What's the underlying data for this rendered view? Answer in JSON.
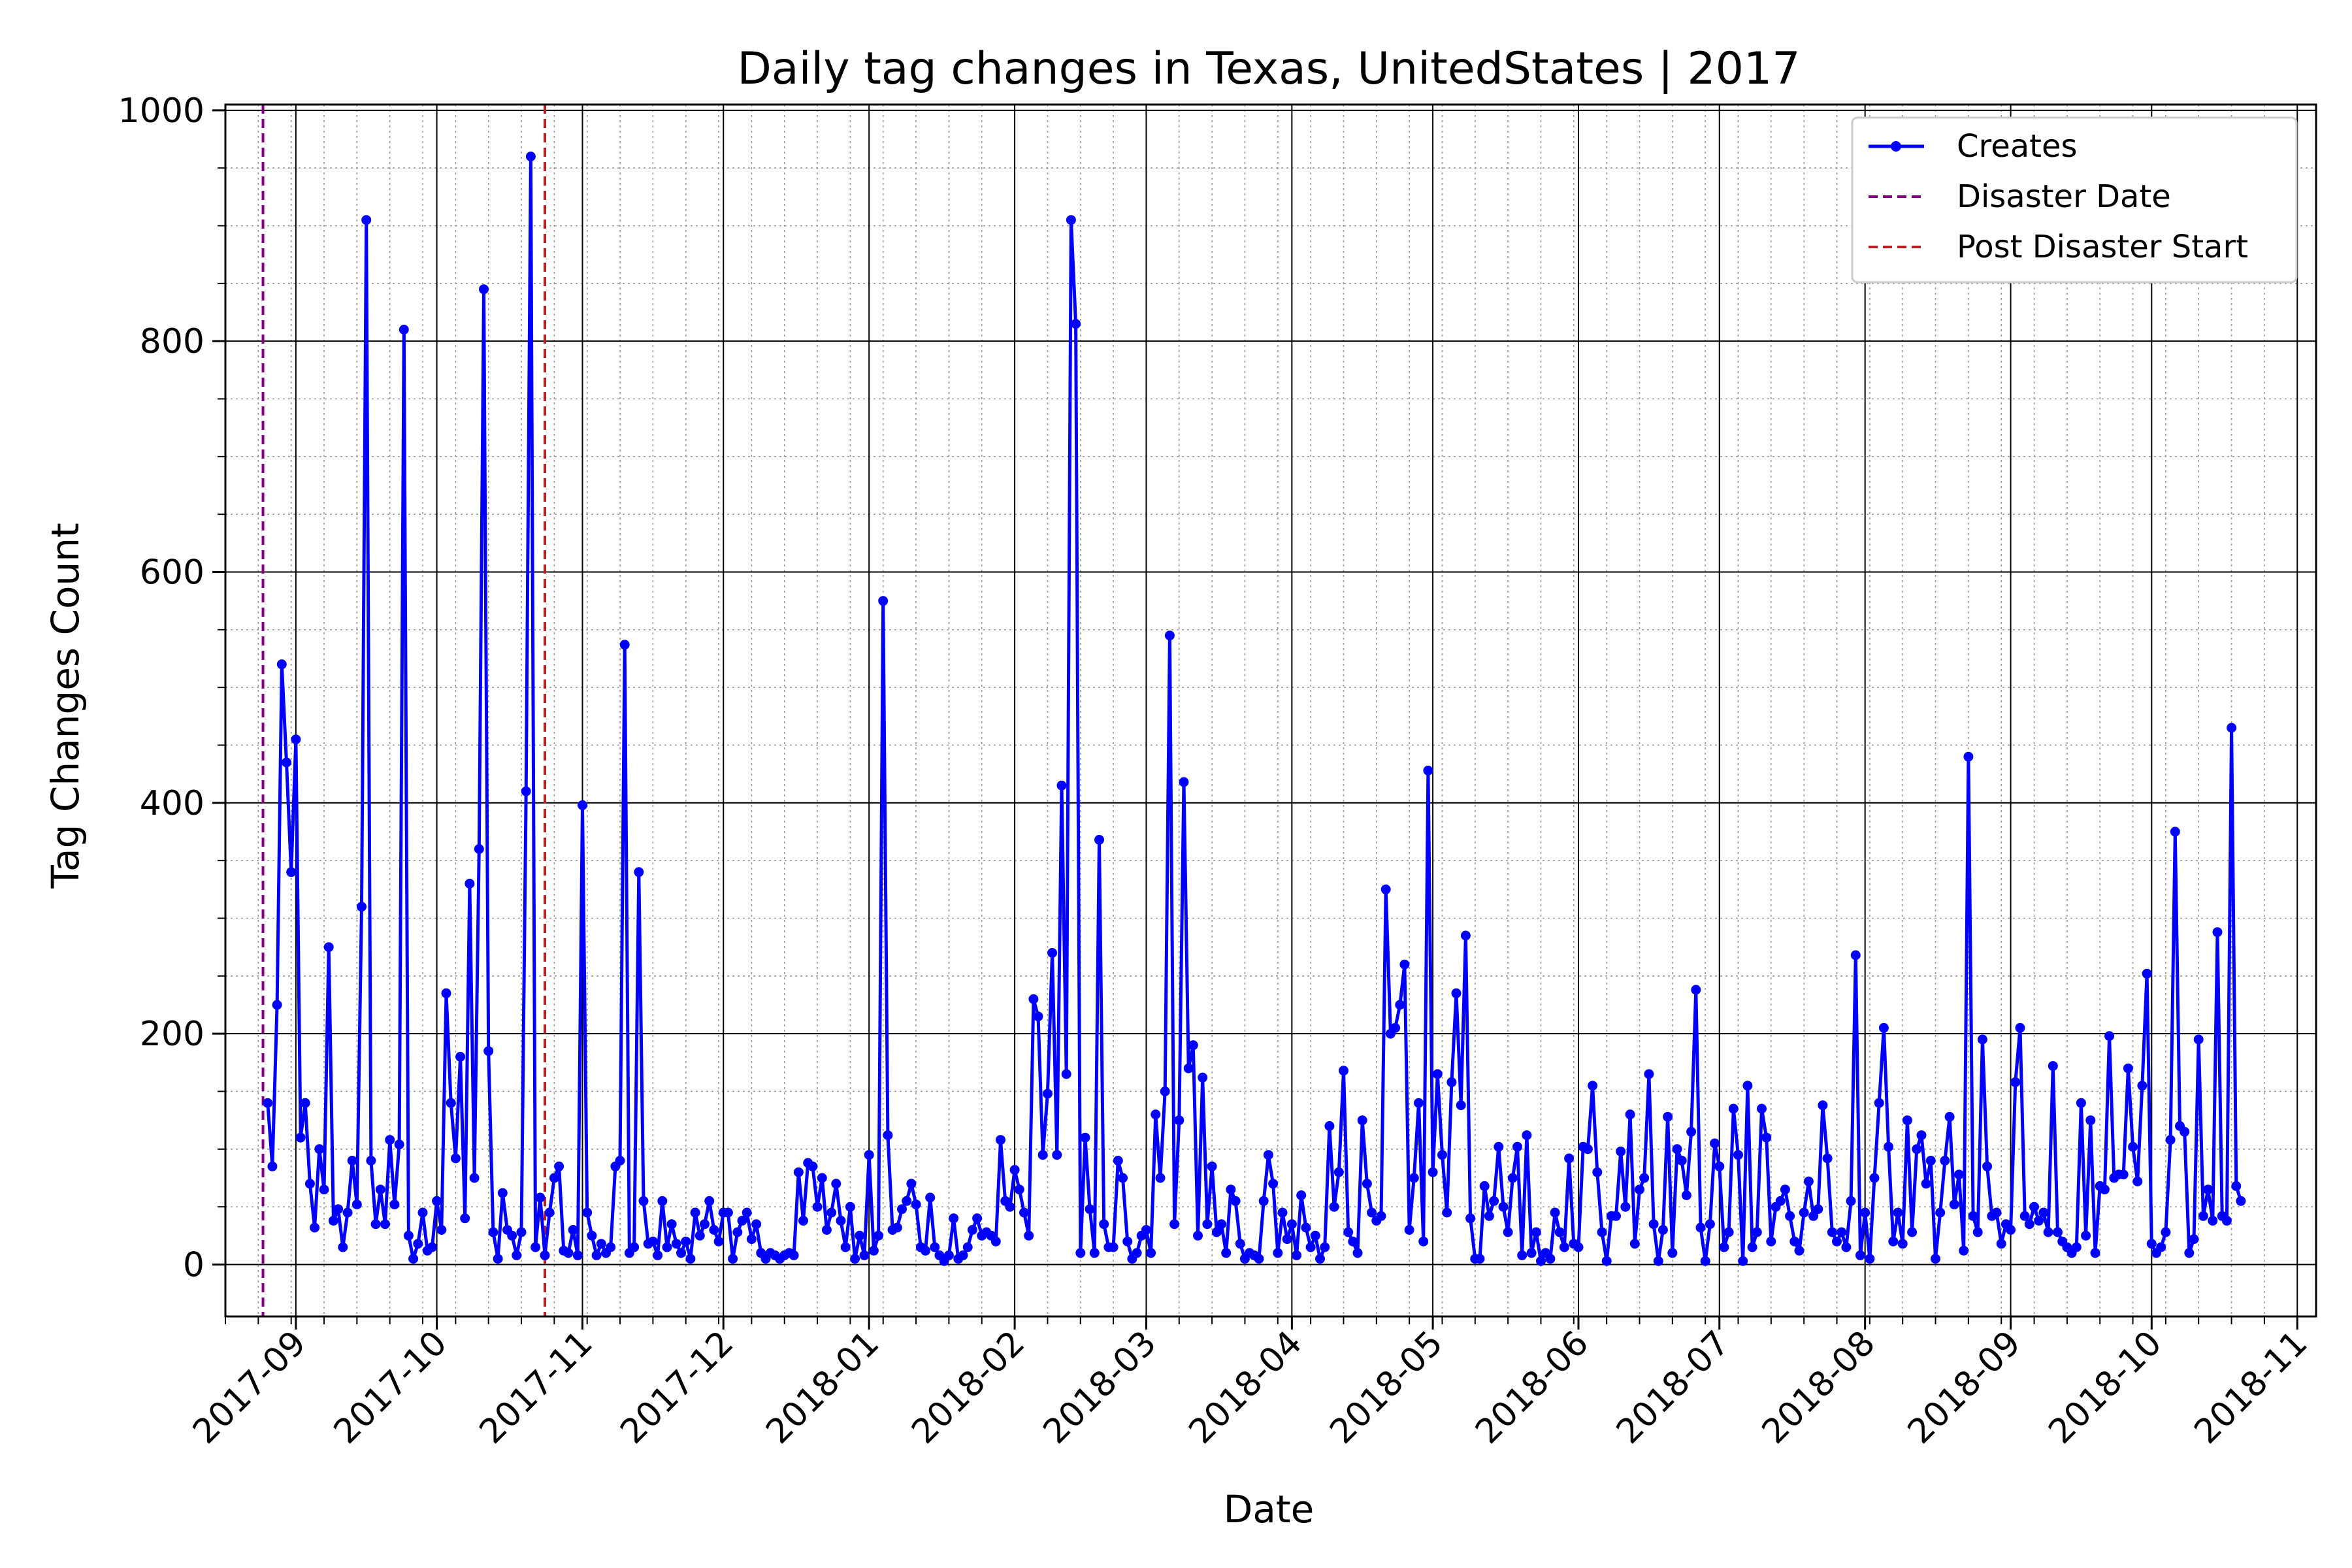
{
  "chart_data": {
    "type": "line",
    "title": "Daily tag changes in Texas, UnitedStates | 2017",
    "xlabel": "Date",
    "ylabel": "Tag Changes Count",
    "x_start": "2017-08-26",
    "xlim": [
      "2017-08-17",
      "2018-11-05"
    ],
    "ylim": [
      -45,
      1005
    ],
    "y_ticks": [
      0,
      200,
      400,
      600,
      800,
      1000
    ],
    "x_ticks": [
      {
        "date": "2017-09-01",
        "label": "2017-09"
      },
      {
        "date": "2017-10-01",
        "label": "2017-10"
      },
      {
        "date": "2017-11-01",
        "label": "2017-11"
      },
      {
        "date": "2017-12-01",
        "label": "2017-12"
      },
      {
        "date": "2018-01-01",
        "label": "2018-01"
      },
      {
        "date": "2018-02-01",
        "label": "2018-02"
      },
      {
        "date": "2018-03-01",
        "label": "2018-03"
      },
      {
        "date": "2018-04-01",
        "label": "2018-04"
      },
      {
        "date": "2018-05-01",
        "label": "2018-05"
      },
      {
        "date": "2018-06-01",
        "label": "2018-06"
      },
      {
        "date": "2018-07-01",
        "label": "2018-07"
      },
      {
        "date": "2018-08-01",
        "label": "2018-08"
      },
      {
        "date": "2018-09-01",
        "label": "2018-09"
      },
      {
        "date": "2018-10-01",
        "label": "2018-10"
      },
      {
        "date": "2018-11-01",
        "label": "2018-11"
      }
    ],
    "grid": "major solid, minor dotted",
    "legend_position": "top-right",
    "legend": [
      {
        "label": "Creates",
        "color": "#0000ff",
        "style": "solid-with-markers"
      },
      {
        "label": "Disaster Date",
        "color": "#800080",
        "style": "dashed"
      },
      {
        "label": "Post Disaster Start",
        "color": "#b22222",
        "style": "dashed"
      }
    ],
    "vlines": [
      {
        "name": "Disaster Date",
        "date": "2017-08-25",
        "color": "#800080"
      },
      {
        "name": "Post Disaster Start",
        "date": "2017-10-24",
        "color": "#b22222"
      }
    ],
    "series": [
      {
        "name": "Creates",
        "color": "#0000ff",
        "values": [
          140,
          85,
          225,
          520,
          435,
          340,
          455,
          110,
          140,
          70,
          32,
          100,
          65,
          275,
          38,
          48,
          15,
          45,
          90,
          52,
          310,
          905,
          90,
          35,
          65,
          35,
          108,
          52,
          104,
          810,
          25,
          5,
          18,
          45,
          12,
          15,
          55,
          30,
          235,
          140,
          92,
          180,
          40,
          330,
          75,
          360,
          845,
          185,
          28,
          5,
          62,
          30,
          25,
          8,
          28,
          410,
          960,
          15,
          58,
          8,
          45,
          75,
          85,
          12,
          10,
          30,
          8,
          398,
          45,
          25,
          8,
          18,
          10,
          15,
          85,
          90,
          537,
          10,
          15,
          340,
          55,
          18,
          20,
          8,
          55,
          15,
          35,
          18,
          10,
          20,
          5,
          45,
          25,
          35,
          55,
          30,
          20,
          45,
          45,
          5,
          28,
          38,
          45,
          22,
          35,
          10,
          5,
          10,
          8,
          5,
          8,
          10,
          8,
          80,
          38,
          88,
          85,
          50,
          75,
          30,
          45,
          70,
          38,
          15,
          50,
          5,
          25,
          8,
          95,
          12,
          25,
          575,
          112,
          30,
          32,
          48,
          55,
          70,
          52,
          15,
          12,
          58,
          15,
          8,
          3,
          8,
          40,
          5,
          8,
          15,
          30,
          40,
          25,
          28,
          25,
          20,
          108,
          55,
          50,
          82,
          65,
          45,
          25,
          230,
          215,
          95,
          148,
          270,
          95,
          415,
          165,
          905,
          815,
          10,
          110,
          48,
          10,
          368,
          35,
          15,
          15,
          90,
          75,
          20,
          5,
          10,
          25,
          30,
          10,
          130,
          75,
          150,
          545,
          35,
          125,
          418,
          170,
          190,
          25,
          162,
          35,
          85,
          28,
          35,
          10,
          65,
          55,
          18,
          5,
          10,
          8,
          5,
          55,
          95,
          70,
          10,
          45,
          22,
          35,
          8,
          60,
          32,
          15,
          25,
          5,
          15,
          120,
          50,
          80,
          168,
          28,
          20,
          10,
          125,
          70,
          45,
          38,
          42,
          325,
          200,
          205,
          225,
          260,
          30,
          75,
          140,
          20,
          428,
          80,
          165,
          95,
          45,
          158,
          235,
          138,
          285,
          40,
          5,
          5,
          68,
          42,
          55,
          102,
          50,
          28,
          75,
          102,
          8,
          112,
          10,
          28,
          3,
          10,
          5,
          45,
          28,
          15,
          92,
          18,
          15,
          102,
          100,
          155,
          80,
          28,
          3,
          42,
          42,
          98,
          50,
          130,
          18,
          65,
          75,
          165,
          35,
          3,
          30,
          128,
          10,
          100,
          90,
          60,
          115,
          238,
          32,
          3,
          35,
          105,
          85,
          15,
          28,
          135,
          95,
          3,
          155,
          15,
          28,
          135,
          110,
          20,
          50,
          55,
          65,
          42,
          20,
          12,
          45,
          72,
          42,
          48,
          138,
          92,
          28,
          20,
          28,
          15,
          55,
          268,
          8,
          45,
          5,
          75,
          140,
          205,
          102,
          20,
          45,
          18,
          125,
          28,
          100,
          112,
          70,
          90,
          5,
          45,
          90,
          128,
          52,
          78,
          12,
          440,
          42,
          28,
          195,
          85,
          42,
          45,
          18,
          35,
          30,
          158,
          205,
          42,
          35,
          50,
          38,
          45,
          28,
          172,
          28,
          20,
          15,
          10,
          15,
          140,
          25,
          125,
          10,
          68,
          65,
          198,
          75,
          78,
          78,
          170,
          102,
          72,
          155,
          252,
          18,
          10,
          15,
          28,
          108,
          375,
          120,
          115,
          10,
          22,
          195,
          42,
          65,
          38,
          288,
          42,
          38,
          465,
          68,
          55
        ]
      }
    ]
  }
}
